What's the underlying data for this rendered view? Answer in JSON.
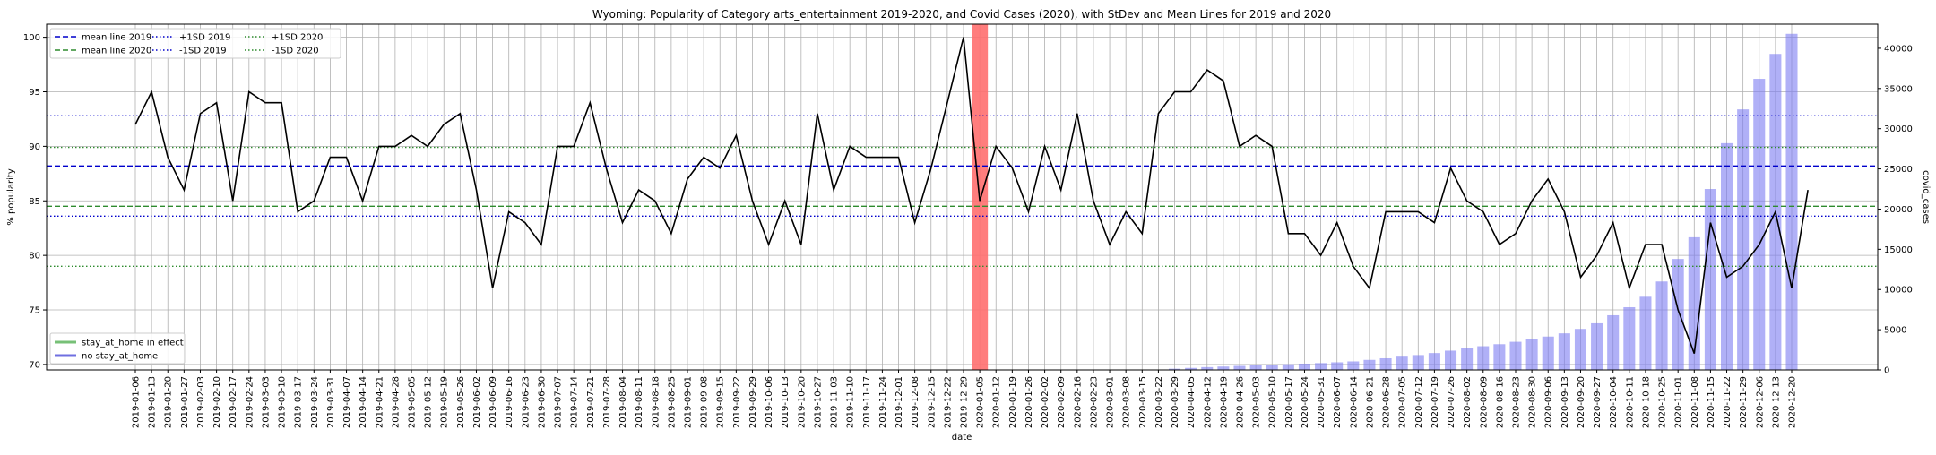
{
  "chart_data": {
    "type": "line",
    "title": "Wyoming: Popularity of Category arts_entertainment 2019-2020, and Covid Cases (2020), with StDev and Mean Lines for 2019 and 2020",
    "xlabel": "date",
    "ylabel": "% popularity",
    "y2label": "covid_cases",
    "ylim": [
      69.5,
      101.2
    ],
    "y2lim": [
      0,
      43000
    ],
    "yticks": [
      70,
      75,
      80,
      85,
      90,
      95,
      100
    ],
    "y2ticks": [
      0,
      5000,
      10000,
      15000,
      20000,
      25000,
      30000,
      35000,
      40000
    ],
    "grid": true,
    "dates": [
      "2019-01-06",
      "2019-01-13",
      "2019-01-20",
      "2019-01-27",
      "2019-02-03",
      "2019-02-10",
      "2019-02-17",
      "2019-02-24",
      "2019-03-03",
      "2019-03-10",
      "2019-03-17",
      "2019-03-24",
      "2019-03-31",
      "2019-04-07",
      "2019-04-14",
      "2019-04-21",
      "2019-04-28",
      "2019-05-05",
      "2019-05-12",
      "2019-05-19",
      "2019-05-26",
      "2019-06-02",
      "2019-06-09",
      "2019-06-16",
      "2019-06-23",
      "2019-06-30",
      "2019-07-07",
      "2019-07-14",
      "2019-07-21",
      "2019-07-28",
      "2019-08-04",
      "2019-08-11",
      "2019-08-18",
      "2019-08-25",
      "2019-09-01",
      "2019-09-08",
      "2019-09-15",
      "2019-09-22",
      "2019-09-29",
      "2019-10-06",
      "2019-10-13",
      "2019-10-20",
      "2019-10-27",
      "2019-11-03",
      "2019-11-10",
      "2019-11-17",
      "2019-11-24",
      "2019-12-01",
      "2019-12-08",
      "2019-12-15",
      "2019-12-22",
      "2019-12-29",
      "2020-01-05",
      "2020-01-12",
      "2020-01-19",
      "2020-01-26",
      "2020-02-02",
      "2020-02-09",
      "2020-02-16",
      "2020-02-23",
      "2020-03-01",
      "2020-03-08",
      "2020-03-15",
      "2020-03-22",
      "2020-03-29",
      "2020-04-05",
      "2020-04-12",
      "2020-04-19",
      "2020-04-26",
      "2020-05-03",
      "2020-05-10",
      "2020-05-17",
      "2020-05-24",
      "2020-05-31",
      "2020-06-07",
      "2020-06-14",
      "2020-06-21",
      "2020-06-28",
      "2020-07-05",
      "2020-07-12",
      "2020-07-19",
      "2020-07-26",
      "2020-08-02",
      "2020-08-09",
      "2020-08-16",
      "2020-08-23",
      "2020-08-30",
      "2020-09-06",
      "2020-09-13",
      "2020-09-20",
      "2020-09-27",
      "2020-10-04",
      "2020-10-11",
      "2020-10-18",
      "2020-10-25",
      "2020-11-01",
      "2020-11-08",
      "2020-11-15",
      "2020-11-22",
      "2020-11-29",
      "2020-12-06",
      "2020-12-13",
      "2020-12-20"
    ],
    "popularity": [
      92,
      95,
      89,
      86,
      93,
      94,
      85,
      95,
      94,
      94,
      84,
      85,
      89,
      89,
      85,
      90,
      90,
      91,
      90,
      92,
      93,
      86,
      77,
      84,
      83,
      81,
      90,
      90,
      94,
      88,
      83,
      86,
      85,
      82,
      87,
      89,
      88,
      91,
      85,
      81,
      85,
      81,
      93,
      86,
      90,
      89,
      89,
      89,
      83,
      88,
      94,
      100,
      85,
      90,
      88,
      84,
      90,
      86,
      93,
      85,
      81,
      84,
      82,
      93,
      95,
      95,
      97,
      96,
      90,
      91,
      90,
      82,
      82,
      80,
      83,
      79,
      77,
      84,
      84,
      84,
      83,
      88,
      85,
      84,
      81,
      82,
      85,
      87,
      84,
      78,
      80,
      83,
      77,
      81,
      81,
      75,
      71,
      83,
      78,
      79,
      81,
      84,
      77,
      86
    ],
    "covid_cases": [
      0,
      0,
      0,
      0,
      0,
      0,
      0,
      0,
      0,
      0,
      0,
      0,
      0,
      0,
      0,
      0,
      0,
      0,
      0,
      0,
      0,
      0,
      0,
      0,
      0,
      0,
      0,
      0,
      0,
      0,
      0,
      0,
      0,
      0,
      0,
      0,
      0,
      0,
      0,
      0,
      0,
      0,
      0,
      0,
      0,
      0,
      0,
      0,
      0,
      0,
      0,
      0,
      0,
      0,
      0,
      0,
      0,
      0,
      0,
      0,
      0,
      0,
      0,
      50,
      150,
      250,
      350,
      420,
      500,
      570,
      640,
      710,
      780,
      850,
      950,
      1060,
      1250,
      1450,
      1650,
      1850,
      2100,
      2400,
      2700,
      2950,
      3200,
      3500,
      3800,
      4150,
      4550,
      5100,
      5800,
      6800,
      7800,
      9100,
      11000,
      13800,
      16500,
      22500,
      28200,
      32400,
      36200,
      39300,
      41800
    ],
    "stay_at_home_dates": [
      "2020-01-05"
    ],
    "mean_2019": 88.2,
    "std_upper_2019": 92.8,
    "std_lower_2019": 83.6,
    "mean_2020": 84.5,
    "std_upper_2020": 89.9,
    "std_lower_2020": 79.0,
    "legend_top": [
      {
        "label": "mean line 2019",
        "color": "#0000cc",
        "dash": "dashed"
      },
      {
        "label": "mean line 2020",
        "color": "#2e8b2e",
        "dash": "dashed"
      },
      {
        "label": "+1SD 2019",
        "color": "#0000cc",
        "dash": "dotted"
      },
      {
        "label": "-1SD 2019",
        "color": "#0000cc",
        "dash": "dotted"
      },
      {
        "label": "+1SD 2020",
        "color": "#2e8b2e",
        "dash": "dotted"
      },
      {
        "label": "-1SD 2020",
        "color": "#2e8b2e",
        "dash": "dotted"
      }
    ],
    "legend_bottom": [
      {
        "label": "stay_at_home in effect",
        "color": "#77c077"
      },
      {
        "label": "no stay_at_home",
        "color": "#6f6fe0"
      }
    ],
    "colors": {
      "line": "#000000",
      "bars": "#7b7bf2",
      "stay_at_home_band": "#ff6f6f",
      "mean_2019": "#0000cc",
      "mean_2020": "#2e8b2e"
    }
  }
}
